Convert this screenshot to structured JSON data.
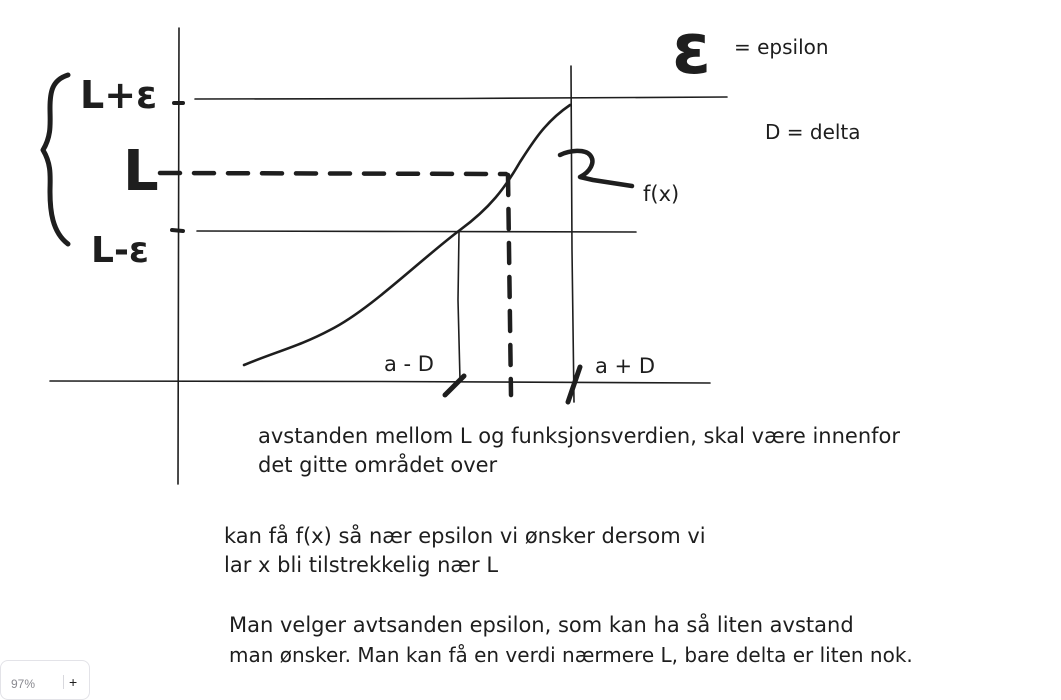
{
  "labels": {
    "upper": "L+ɛ",
    "middle": "L",
    "lower": "L-ɛ",
    "function": "f(x)",
    "a_minus": "a - D",
    "a_plus": "a + D"
  },
  "legend": {
    "epsilon_symbol": "ɛ",
    "epsilon_text": "= epsilon",
    "delta_text": "D = delta"
  },
  "notes": {
    "line1": "avstanden mellom L og funksjonsverdien, skal være innenfor",
    "line2": "det gitte området over",
    "line3": "kan få f(x) så nær epsilon vi ønsker dersom vi",
    "line4": "lar x bli tilstrekkelig nær L",
    "line5": "Man velger avtsanden epsilon, som kan ha så liten avstand",
    "line6": "man ønsker. Man kan få en verdi nærmere L, bare delta er liten nok."
  },
  "zoom": {
    "value": "97%",
    "plus": "+"
  },
  "colors": {
    "ink": "#1e1e1e",
    "background": "#ffffff"
  }
}
